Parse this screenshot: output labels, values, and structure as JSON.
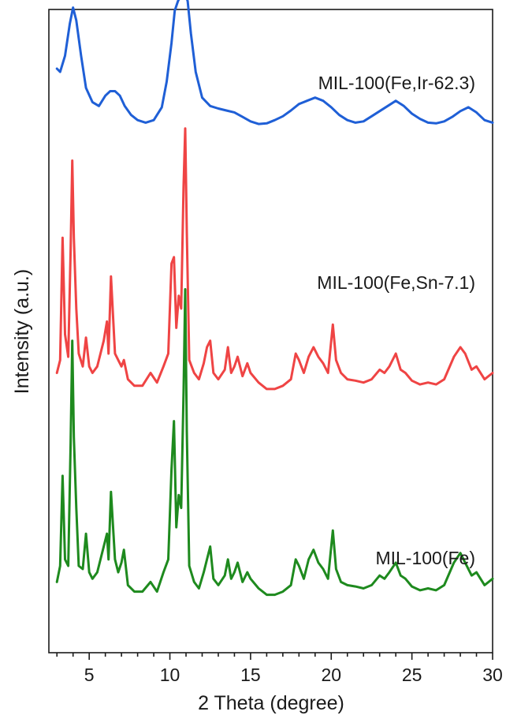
{
  "chart_data": {
    "type": "line",
    "title": "",
    "xlabel": "2 Theta (degree)",
    "ylabel": "Intensity (a.u.)",
    "xlim": [
      2.5,
      30
    ],
    "ylim": [
      0,
      10
    ],
    "x_major_ticks": [
      5,
      10,
      15,
      20,
      25,
      30
    ],
    "x_tick_labels": [
      "5",
      "10",
      "15",
      "20",
      "25",
      "30"
    ],
    "x_minor_step": 1,
    "y_ticks": false,
    "grid": false,
    "legend": "none",
    "series_label_position": "above each trace, right side",
    "series": [
      {
        "name": "MIL-100(Fe,Ir-62.3)",
        "color": "#1f5fd6",
        "baseline": 8.18,
        "x": [
          3.0,
          3.2,
          3.5,
          3.8,
          4.0,
          4.2,
          4.5,
          4.8,
          5.2,
          5.6,
          6.0,
          6.3,
          6.6,
          6.9,
          7.2,
          7.6,
          8.0,
          8.5,
          9.0,
          9.5,
          9.8,
          10.1,
          10.3,
          10.5,
          10.7,
          10.9,
          11.1,
          11.3,
          11.6,
          12.0,
          12.5,
          13.0,
          13.5,
          14.0,
          14.5,
          15.0,
          15.5,
          16.0,
          16.5,
          17.0,
          17.5,
          18.0,
          18.5,
          19.0,
          19.5,
          20.0,
          20.5,
          21.0,
          21.5,
          22.0,
          22.5,
          23.0,
          23.5,
          24.0,
          24.5,
          25.0,
          25.5,
          26.0,
          26.5,
          27.0,
          27.5,
          28.0,
          28.5,
          29.0,
          29.5,
          30.0
        ],
        "y": [
          0.9,
          0.85,
          1.1,
          1.6,
          1.85,
          1.65,
          1.1,
          0.6,
          0.38,
          0.32,
          0.48,
          0.55,
          0.55,
          0.48,
          0.32,
          0.18,
          0.1,
          0.06,
          0.1,
          0.3,
          0.7,
          1.3,
          1.8,
          1.95,
          2.05,
          2.1,
          1.95,
          1.45,
          0.85,
          0.45,
          0.32,
          0.28,
          0.25,
          0.22,
          0.15,
          0.08,
          0.04,
          0.05,
          0.1,
          0.16,
          0.25,
          0.35,
          0.4,
          0.45,
          0.4,
          0.3,
          0.18,
          0.1,
          0.06,
          0.08,
          0.16,
          0.24,
          0.32,
          0.4,
          0.32,
          0.2,
          0.12,
          0.06,
          0.05,
          0.08,
          0.15,
          0.24,
          0.3,
          0.22,
          0.1,
          0.06
        ]
      },
      {
        "name": "MIL-100(Fe,Sn-7.1)",
        "color": "#ef4444",
        "baseline": 4.05,
        "x": [
          3.0,
          3.2,
          3.35,
          3.5,
          3.7,
          3.85,
          3.95,
          4.05,
          4.2,
          4.35,
          4.6,
          4.8,
          5.0,
          5.2,
          5.5,
          5.9,
          6.1,
          6.2,
          6.35,
          6.6,
          6.8,
          7.0,
          7.15,
          7.4,
          7.8,
          8.3,
          8.8,
          9.2,
          9.6,
          9.9,
          10.1,
          10.25,
          10.4,
          10.55,
          10.7,
          10.85,
          10.95,
          11.05,
          11.2,
          11.5,
          11.8,
          12.1,
          12.3,
          12.5,
          12.7,
          13.0,
          13.4,
          13.6,
          13.8,
          14.0,
          14.2,
          14.5,
          14.8,
          15.0,
          15.5,
          16.0,
          16.5,
          17.0,
          17.5,
          17.8,
          18.0,
          18.3,
          18.6,
          18.9,
          19.2,
          19.5,
          19.8,
          20.1,
          20.3,
          20.6,
          21.0,
          21.5,
          22.0,
          22.5,
          23.0,
          23.3,
          23.6,
          24.0,
          24.3,
          24.6,
          25.0,
          25.5,
          26.0,
          26.5,
          27.0,
          27.6,
          28.0,
          28.3,
          28.7,
          29.0,
          29.5,
          30.0
        ],
        "y": [
          0.3,
          0.5,
          2.4,
          0.9,
          0.55,
          2.2,
          3.6,
          2.4,
          1.3,
          0.6,
          0.4,
          0.85,
          0.4,
          0.3,
          0.4,
          0.8,
          1.1,
          0.6,
          1.8,
          0.6,
          0.5,
          0.4,
          0.5,
          0.2,
          0.1,
          0.1,
          0.3,
          0.15,
          0.4,
          0.6,
          2.0,
          2.1,
          1.0,
          1.5,
          1.3,
          3.2,
          4.1,
          2.5,
          0.5,
          0.3,
          0.2,
          0.45,
          0.7,
          0.8,
          0.3,
          0.2,
          0.35,
          0.7,
          0.3,
          0.4,
          0.55,
          0.25,
          0.45,
          0.3,
          0.15,
          0.05,
          0.05,
          0.1,
          0.2,
          0.6,
          0.5,
          0.3,
          0.55,
          0.7,
          0.55,
          0.45,
          0.3,
          1.05,
          0.5,
          0.3,
          0.2,
          0.18,
          0.15,
          0.2,
          0.35,
          0.3,
          0.4,
          0.6,
          0.35,
          0.3,
          0.18,
          0.12,
          0.15,
          0.12,
          0.2,
          0.55,
          0.7,
          0.6,
          0.35,
          0.4,
          0.2,
          0.3
        ]
      },
      {
        "name": "MIL-100(Fe)",
        "color": "#1e8a1e",
        "baseline": 0.85,
        "x": [
          3.0,
          3.2,
          3.35,
          3.5,
          3.7,
          3.85,
          3.95,
          4.05,
          4.2,
          4.35,
          4.6,
          4.8,
          5.0,
          5.2,
          5.5,
          5.9,
          6.1,
          6.2,
          6.35,
          6.6,
          6.8,
          7.0,
          7.15,
          7.4,
          7.8,
          8.3,
          8.8,
          9.2,
          9.6,
          9.9,
          10.1,
          10.25,
          10.4,
          10.55,
          10.7,
          10.85,
          10.95,
          11.05,
          11.2,
          11.5,
          11.8,
          12.1,
          12.3,
          12.5,
          12.7,
          13.0,
          13.4,
          13.6,
          13.8,
          14.0,
          14.2,
          14.5,
          14.8,
          15.0,
          15.5,
          16.0,
          16.5,
          17.0,
          17.5,
          17.8,
          18.0,
          18.3,
          18.6,
          18.9,
          19.2,
          19.5,
          19.8,
          20.1,
          20.3,
          20.6,
          21.0,
          21.5,
          22.0,
          22.5,
          23.0,
          23.3,
          23.6,
          24.0,
          24.3,
          24.6,
          25.0,
          25.5,
          26.0,
          26.5,
          27.0,
          27.6,
          28.0,
          28.3,
          28.7,
          29.0,
          29.5,
          30.0
        ],
        "y": [
          0.25,
          0.5,
          1.9,
          0.6,
          0.5,
          2.4,
          4.0,
          2.5,
          1.4,
          0.5,
          0.45,
          1.0,
          0.4,
          0.3,
          0.4,
          0.8,
          1.0,
          0.6,
          1.65,
          0.6,
          0.4,
          0.55,
          0.75,
          0.2,
          0.1,
          0.1,
          0.25,
          0.1,
          0.4,
          0.6,
          2.0,
          2.75,
          1.1,
          1.6,
          1.4,
          3.2,
          4.8,
          2.6,
          0.5,
          0.25,
          0.15,
          0.4,
          0.6,
          0.8,
          0.3,
          0.2,
          0.35,
          0.6,
          0.3,
          0.4,
          0.55,
          0.25,
          0.4,
          0.3,
          0.15,
          0.05,
          0.05,
          0.1,
          0.2,
          0.6,
          0.5,
          0.3,
          0.6,
          0.75,
          0.55,
          0.45,
          0.3,
          1.05,
          0.45,
          0.25,
          0.2,
          0.18,
          0.15,
          0.2,
          0.35,
          0.3,
          0.4,
          0.55,
          0.35,
          0.3,
          0.18,
          0.12,
          0.15,
          0.12,
          0.2,
          0.55,
          0.7,
          0.55,
          0.35,
          0.4,
          0.2,
          0.3
        ]
      }
    ]
  }
}
